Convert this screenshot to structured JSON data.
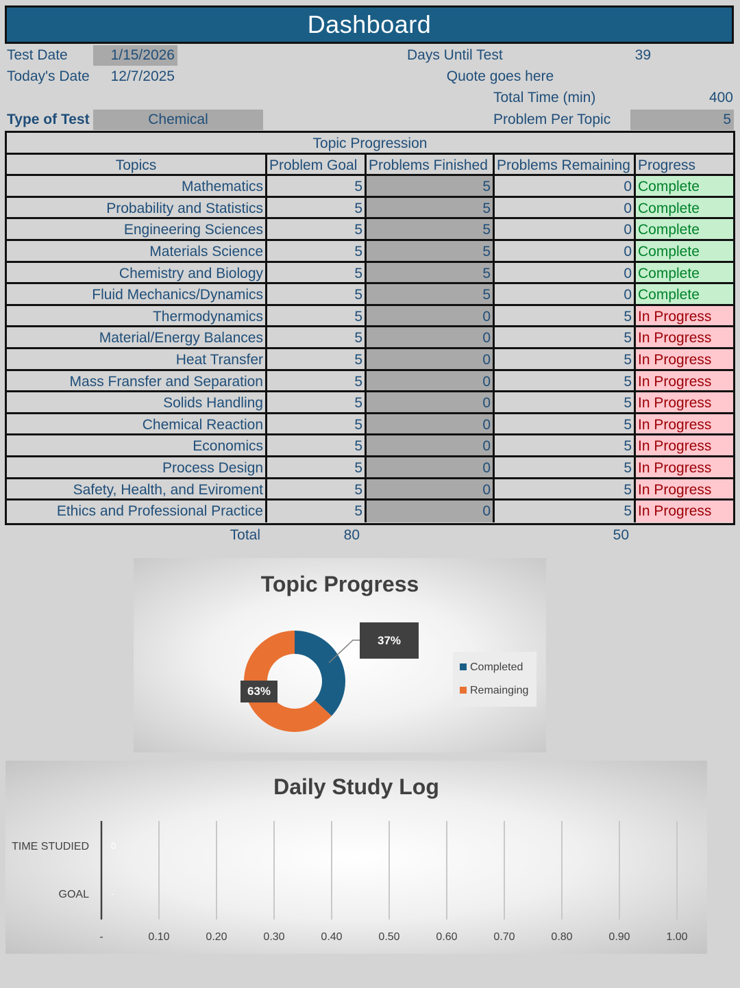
{
  "header": {
    "title": "Dashboard"
  },
  "info": {
    "test_date_label": "Test Date",
    "test_date": "1/15/2026",
    "todays_date_label": "Today's Date",
    "todays_date": "12/7/2025",
    "days_until_label": "Days Until Test",
    "days_until": "39",
    "quote": "Quote goes here",
    "total_time_label": "Total Time (min)",
    "total_time": "400",
    "type_label": "Type of Test",
    "type_value": "Chemical",
    "per_topic_label": "Problem Per Topic",
    "per_topic": "5"
  },
  "table": {
    "title": "Topic Progression",
    "headers": [
      "Topics",
      "Problem Goal",
      "Problems Finished",
      "Problems Remaining",
      "Progress"
    ],
    "rows": [
      {
        "topic": "Mathematics",
        "goal": "5",
        "finished": "5",
        "remaining": "0",
        "status": "Complete"
      },
      {
        "topic": "Probability and Statistics",
        "goal": "5",
        "finished": "5",
        "remaining": "0",
        "status": "Complete"
      },
      {
        "topic": "Engineering Sciences",
        "goal": "5",
        "finished": "5",
        "remaining": "0",
        "status": "Complete"
      },
      {
        "topic": "Materials Science",
        "goal": "5",
        "finished": "5",
        "remaining": "0",
        "status": "Complete"
      },
      {
        "topic": "Chemistry and Biology",
        "goal": "5",
        "finished": "5",
        "remaining": "0",
        "status": "Complete"
      },
      {
        "topic": "Fluid Mechanics/Dynamics",
        "goal": "5",
        "finished": "5",
        "remaining": "0",
        "status": "Complete"
      },
      {
        "topic": "Thermodynamics",
        "goal": "5",
        "finished": "0",
        "remaining": "5",
        "status": "In Progress"
      },
      {
        "topic": "Material/Energy Balances",
        "goal": "5",
        "finished": "0",
        "remaining": "5",
        "status": "In Progress"
      },
      {
        "topic": "Heat Transfer",
        "goal": "5",
        "finished": "0",
        "remaining": "5",
        "status": "In Progress"
      },
      {
        "topic": "Mass Fransfer and Separation",
        "goal": "5",
        "finished": "0",
        "remaining": "5",
        "status": "In Progress"
      },
      {
        "topic": "Solids Handling",
        "goal": "5",
        "finished": "0",
        "remaining": "5",
        "status": "In Progress"
      },
      {
        "topic": "Chemical Reaction",
        "goal": "5",
        "finished": "0",
        "remaining": "5",
        "status": "In Progress"
      },
      {
        "topic": "Economics",
        "goal": "5",
        "finished": "0",
        "remaining": "5",
        "status": "In Progress"
      },
      {
        "topic": "Process Design",
        "goal": "5",
        "finished": "0",
        "remaining": "5",
        "status": "In Progress"
      },
      {
        "topic": "Safety, Health, and Eviroment",
        "goal": "5",
        "finished": "0",
        "remaining": "5",
        "status": "In Progress"
      },
      {
        "topic": "Ethics and Professional Practice",
        "goal": "5",
        "finished": "0",
        "remaining": "5",
        "status": "In Progress"
      }
    ],
    "total_label": "Total",
    "total_goal": "80",
    "total_remaining": "50"
  },
  "colors": {
    "banner": "#1a5e86",
    "text": "#1f4e79",
    "complete_bg": "#c6efce",
    "complete_text": "#00822a",
    "progress_bg": "#ffc7ce",
    "progress_text": "#9c0006",
    "completed_slice": "#1a5e86",
    "remaining_slice": "#e97132"
  },
  "chart_data": [
    {
      "type": "pie",
      "title": "Topic Progress",
      "categories": [
        "Completed",
        "Remainging"
      ],
      "values": [
        37,
        63
      ],
      "value_labels": [
        "37%",
        "63%"
      ],
      "legend": "right",
      "donut": true
    },
    {
      "type": "bar",
      "title": "Daily Study Log",
      "categories": [
        "TIME STUDIED",
        "GOAL"
      ],
      "values": [
        0,
        0
      ],
      "value_labels": [
        "0",
        "-"
      ],
      "orientation": "horizontal",
      "xlim": [
        0,
        1
      ],
      "x_ticks": [
        "-",
        "0.10",
        "0.20",
        "0.30",
        "0.40",
        "0.50",
        "0.60",
        "0.70",
        "0.80",
        "0.90",
        "1.00"
      ],
      "grid": true
    }
  ]
}
